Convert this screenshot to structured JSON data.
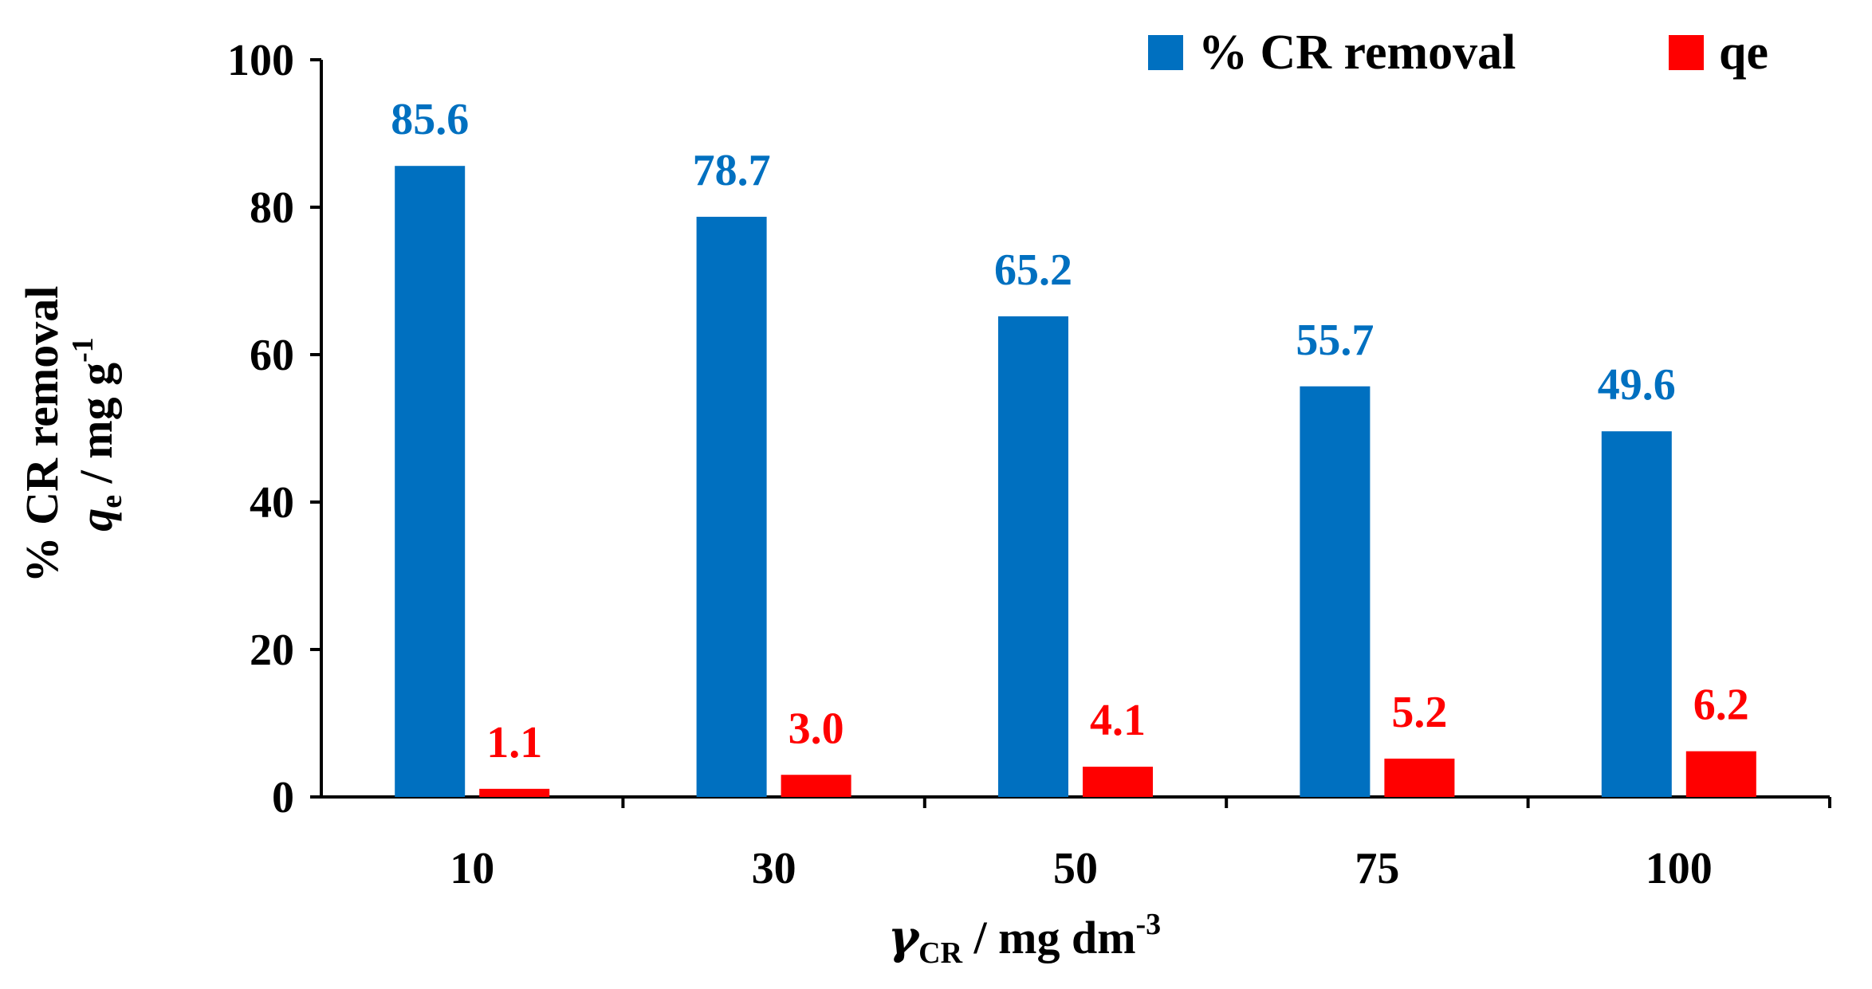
{
  "chart_data": {
    "type": "bar",
    "categories": [
      "10",
      "30",
      "50",
      "75",
      "100"
    ],
    "series": [
      {
        "name": "% CR removal",
        "values": [
          85.6,
          78.7,
          65.2,
          55.7,
          49.6
        ],
        "labels": [
          "85.6",
          "78.7",
          "65.2",
          "55.7",
          "49.6"
        ],
        "color": "#0070C0"
      },
      {
        "name": "qe",
        "values": [
          1.1,
          3.0,
          4.1,
          5.2,
          6.2
        ],
        "labels": [
          "1.1",
          "3.0",
          "4.1",
          "5.2",
          "6.2"
        ],
        "color": "#FF0000"
      }
    ],
    "yticks": [
      "0",
      "20",
      "40",
      "60",
      "80",
      "100"
    ],
    "ylim": [
      0,
      100
    ],
    "ylabel": {
      "line1": "% CR removal",
      "line2_italic": "q",
      "line2_sub": "e",
      "line2_text": " / mg g",
      "line2_sup": "-1"
    },
    "xlabel": {
      "symbol": "γ",
      "sub": "CR",
      "text": " / mg dm",
      "sup": "-3"
    },
    "legend_position": "top-right",
    "grid": false
  }
}
